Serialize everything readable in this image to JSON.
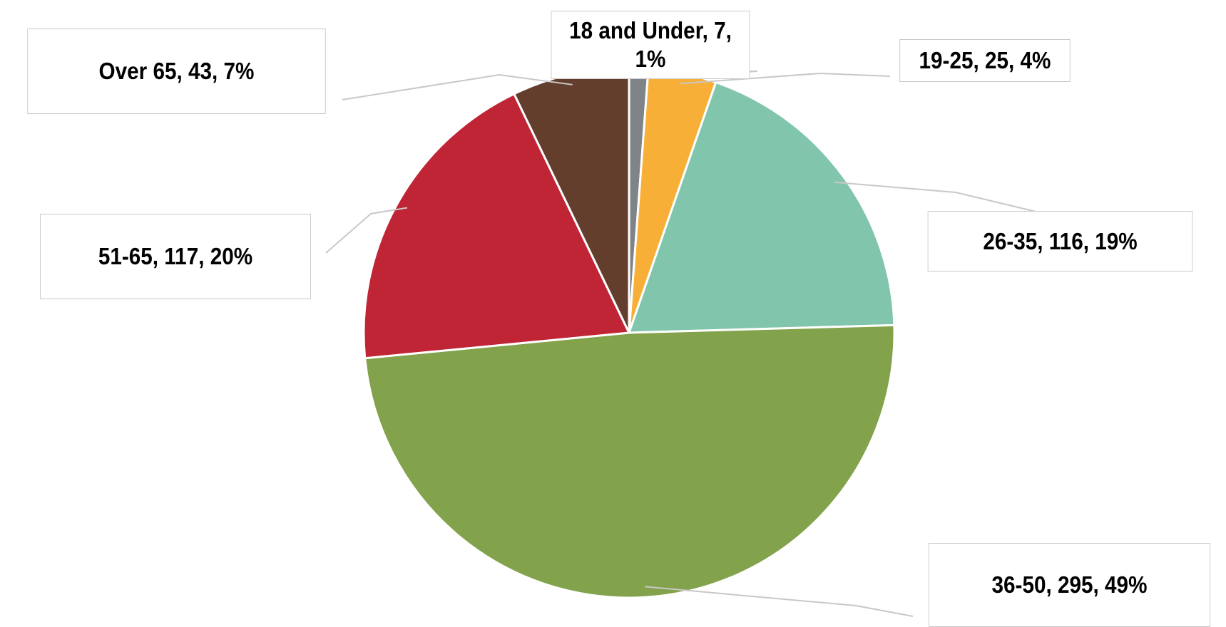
{
  "chart_data": {
    "type": "pie",
    "title": "",
    "start_angle_deg": 0,
    "direction": "clockwise",
    "slices": [
      {
        "label": "18 and Under",
        "value": 7,
        "percent": "1%",
        "text": "18 and Under, 7, 1%",
        "color": "#7f8487"
      },
      {
        "label": "19-25",
        "value": 25,
        "percent": "4%",
        "text": "19-25, 25, 4%",
        "color": "#f8af38"
      },
      {
        "label": "26-35",
        "value": 116,
        "percent": "19%",
        "text": "26-35, 116, 19%",
        "color": "#82c5ad"
      },
      {
        "label": "36-50",
        "value": 295,
        "percent": "49%",
        "text": "36-50, 295, 49%",
        "color": "#82a24b"
      },
      {
        "label": "51-65",
        "value": 117,
        "percent": "20%",
        "text": "51-65, 117, 20%",
        "color": "#c02536"
      },
      {
        "label": "Over 65",
        "value": 43,
        "percent": "7%",
        "text": "Over 65, 43, 7%",
        "color": "#633e2d"
      }
    ],
    "slice_border_color": "#ffffff",
    "leader_line_color": "#c8c8c8",
    "legend": "none"
  }
}
